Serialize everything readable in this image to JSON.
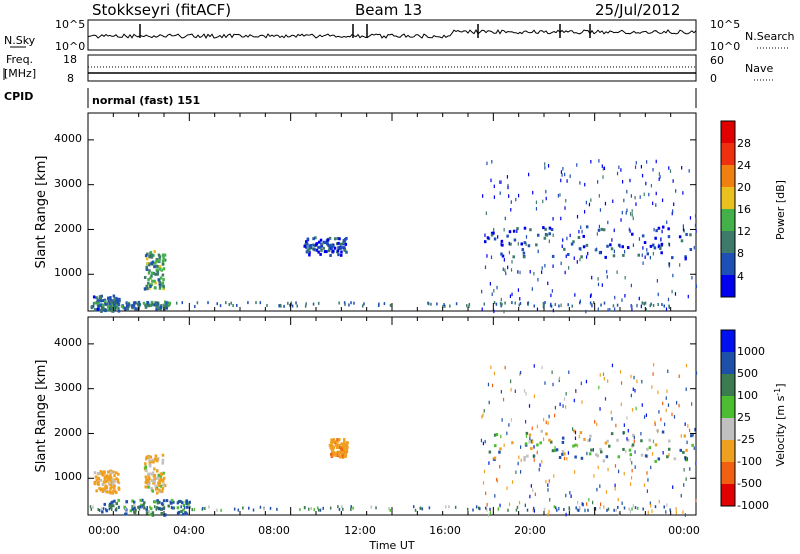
{
  "header": {
    "station": "Stokkseyri (fitACF)",
    "beam": "Beam 13",
    "date": "25/Jul/2012"
  },
  "noise_panel": {
    "left_label": "N.Sky",
    "left_ticks": [
      "10^5",
      "10^0"
    ],
    "right_ticks": [
      "10^5",
      "10^0"
    ],
    "right_label": "N.Search"
  },
  "freq_panel": {
    "label_line1": "Freq.",
    "label_line2": "[MHz]",
    "left_ticks": [
      "18",
      "8"
    ],
    "right_ticks": [
      "60",
      "0"
    ],
    "right_label": "Nave"
  },
  "cpid_panel": {
    "label": "CPID",
    "mode": "normal (fast) 151"
  },
  "x_axis": {
    "label": "Time UT",
    "ticks": [
      "00:00",
      "04:00",
      "08:00",
      "12:00",
      "16:00",
      "20:00",
      "00:00"
    ]
  },
  "y_axis": {
    "label": "Slant Range [km]",
    "ticks": [
      "1000",
      "2000",
      "3000",
      "4000"
    ]
  },
  "colorbars": {
    "power": {
      "label": "Power [dB]",
      "ticks": [
        "4",
        "8",
        "12",
        "16",
        "20",
        "24",
        "28"
      ],
      "colors": [
        "#0000ee",
        "#1e4fb4",
        "#3d7a6a",
        "#44b04a",
        "#e8c020",
        "#f08010",
        "#ee3010",
        "#e00000"
      ]
    },
    "velocity": {
      "label_main": "Velocity [m s",
      "label_sup": "-1",
      "label_end": "]",
      "ticks": [
        "1000",
        "500",
        "100",
        "25",
        "-25",
        "-100",
        "-500",
        "-1000"
      ],
      "colors": [
        "#0010ee",
        "#1e50aa",
        "#3c7a50",
        "#4cbc30",
        "#c0c0c0",
        "#f0a020",
        "#f06010",
        "#e00000"
      ]
    }
  },
  "chart_data": [
    {
      "type": "heatmap",
      "parameter": "power",
      "ylabel": "Slant Range [km]",
      "xlabel": "Time UT",
      "xlim": [
        "00:00",
        "24:00"
      ],
      "ylim": [
        180,
        4600
      ],
      "zlim": [
        0,
        30
      ],
      "features": [
        {
          "t0": 0.1,
          "t1": 1.2,
          "r0": 200,
          "r1": 550,
          "z": 8
        },
        {
          "t0": 0.8,
          "t1": 3.2,
          "r0": 250,
          "r1": 420,
          "z": 10
        },
        {
          "t0": 2.2,
          "t1": 3.0,
          "r0": 700,
          "r1": 1550,
          "z": 12
        },
        {
          "t0": 8.5,
          "t1": 10.2,
          "r0": 1450,
          "r1": 1850,
          "z": 6
        },
        {
          "t0": 15.6,
          "t1": 24.0,
          "r0": 1400,
          "r1": 2100,
          "z": 6
        },
        {
          "t0": 15.5,
          "t1": 24.0,
          "r0": 200,
          "r1": 3600,
          "z": 5
        }
      ]
    },
    {
      "type": "heatmap",
      "parameter": "velocity",
      "ylabel": "Slant Range [km]",
      "xlabel": "Time UT",
      "xlim": [
        "00:00",
        "24:00"
      ],
      "ylim": [
        180,
        4600
      ],
      "zlim": [
        -1000,
        1000
      ],
      "features": [
        {
          "t0": 0.5,
          "t1": 4.0,
          "r0": 200,
          "r1": 550,
          "z": 120
        },
        {
          "t0": 0.2,
          "t1": 1.2,
          "r0": 700,
          "r1": 1200,
          "z": -200
        },
        {
          "t0": 2.2,
          "t1": 3.0,
          "r0": 700,
          "r1": 1550,
          "z": -150
        },
        {
          "t0": 9.5,
          "t1": 10.2,
          "r0": 1500,
          "r1": 1900,
          "z": -400
        },
        {
          "t0": 15.6,
          "t1": 24.0,
          "r0": 1400,
          "r1": 2100,
          "z": 0
        },
        {
          "t0": 15.5,
          "t1": 24.0,
          "r0": 200,
          "r1": 3600,
          "z": 0
        }
      ]
    }
  ]
}
